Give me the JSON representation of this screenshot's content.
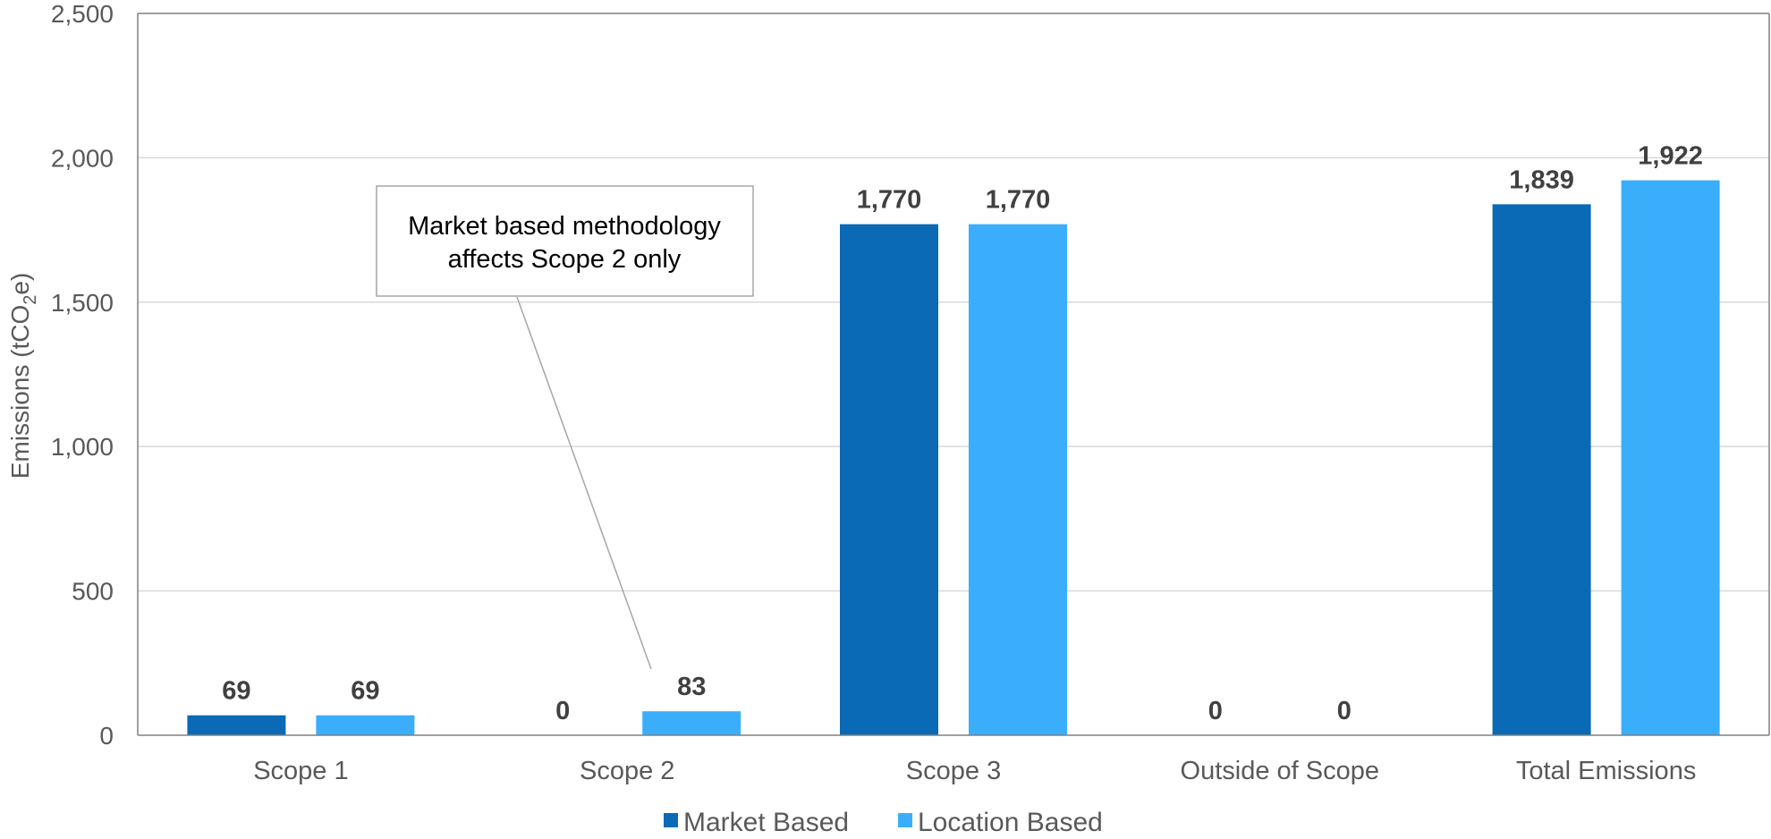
{
  "chart_data": {
    "type": "bar",
    "title": "",
    "xlabel": "",
    "ylabel": "Emissions (tCO2e)",
    "ylabel_parts": {
      "pre": "Emissions (tCO",
      "sub": "2",
      "post": "e)"
    },
    "ylim": [
      0,
      2500
    ],
    "yticks": [
      "0",
      "500",
      "1,000",
      "1,500",
      "2,000",
      "2,500"
    ],
    "ytick_values": [
      0,
      500,
      1000,
      1500,
      2000,
      2500
    ],
    "grid": true,
    "legend_position": "bottom-center",
    "categories": [
      "Scope 1",
      "Scope 2",
      "Scope 3",
      "Outside of Scope",
      "Total Emissions"
    ],
    "series": [
      {
        "name": "Market Based",
        "color": "#0A6AB5",
        "values": [
          69,
          0,
          1770,
          0,
          1839
        ],
        "labels": [
          "69",
          "0",
          "1,770",
          "0",
          "1,839"
        ]
      },
      {
        "name": "Location Based",
        "color": "#3AAEFB",
        "values": [
          69,
          83,
          1770,
          0,
          1922
        ],
        "labels": [
          "69",
          "83",
          "1,770",
          "0",
          "1,922"
        ]
      }
    ],
    "annotation": {
      "lines": [
        "Market based methodology",
        "affects Scope 2 only"
      ],
      "target": "Scope 2 / Location Based"
    }
  }
}
